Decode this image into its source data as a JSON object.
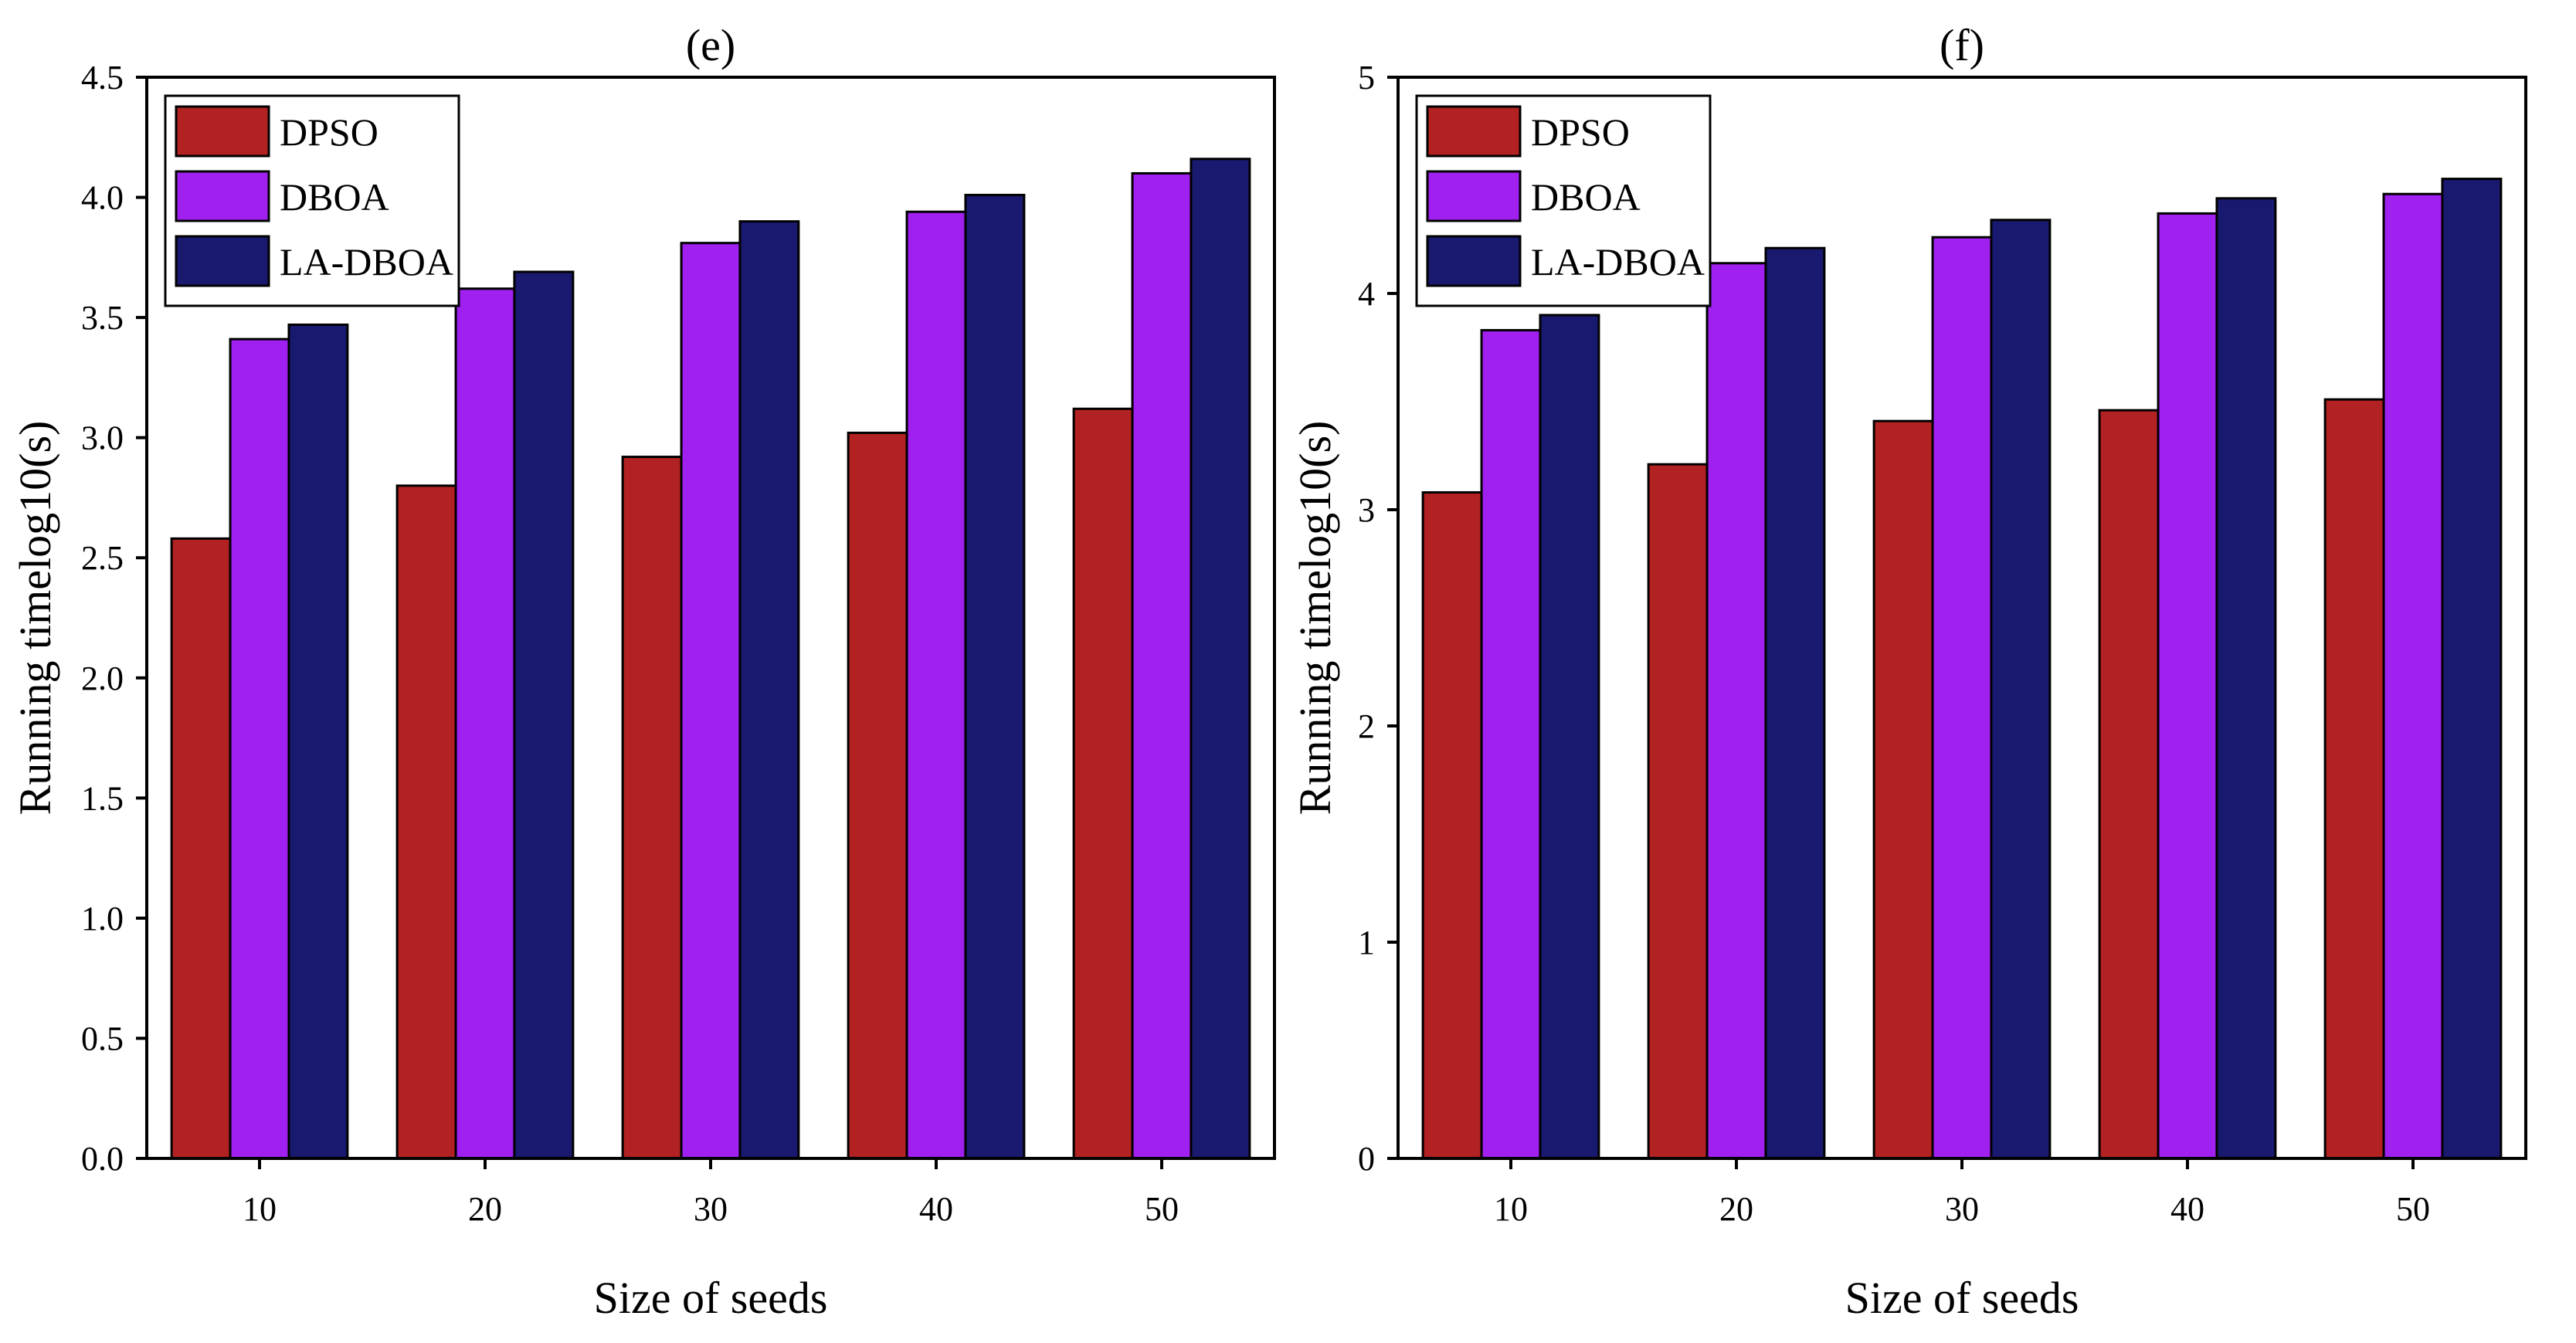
{
  "colors": {
    "DPSO": "#b22222",
    "DBOA": "#a020f0",
    "LA-DBOA": "#191970"
  },
  "chart_data": [
    {
      "type": "bar",
      "title": "(e)",
      "xlabel": "Size of seeds",
      "ylabel": "Running timelog10(s)",
      "categories": [
        "10",
        "20",
        "30",
        "40",
        "50"
      ],
      "ylim": [
        0,
        4.5
      ],
      "yticks": [
        0,
        0.5,
        1,
        1.5,
        2,
        2.5,
        3,
        3.5,
        4,
        4.5
      ],
      "ytick_labels": [
        "0.0",
        "0.5",
        "1.0",
        "1.5",
        "2.0",
        "2.5",
        "3.0",
        "3.5",
        "4.0",
        "4.5"
      ],
      "legend": "top-left",
      "series": [
        {
          "name": "DPSO",
          "values": [
            2.58,
            2.8,
            2.92,
            3.02,
            3.12
          ]
        },
        {
          "name": "DBOA",
          "values": [
            3.41,
            3.62,
            3.81,
            3.94,
            4.1
          ]
        },
        {
          "name": "LA-DBOA",
          "values": [
            3.47,
            3.69,
            3.9,
            4.01,
            4.16
          ]
        }
      ]
    },
    {
      "type": "bar",
      "title": "(f)",
      "xlabel": "Size of seeds",
      "ylabel": "Running timelog10(s)",
      "categories": [
        "10",
        "20",
        "30",
        "40",
        "50"
      ],
      "ylim": [
        0,
        5
      ],
      "yticks": [
        0,
        1,
        2,
        3,
        4,
        5
      ],
      "ytick_labels": [
        "0",
        "1",
        "2",
        "3",
        "4",
        "5"
      ],
      "legend": "top-left",
      "series": [
        {
          "name": "DPSO",
          "values": [
            3.08,
            3.21,
            3.41,
            3.46,
            3.51
          ]
        },
        {
          "name": "DBOA",
          "values": [
            3.83,
            4.14,
            4.26,
            4.37,
            4.46
          ]
        },
        {
          "name": "LA-DBOA",
          "values": [
            3.9,
            4.21,
            4.34,
            4.44,
            4.53
          ]
        }
      ]
    }
  ]
}
